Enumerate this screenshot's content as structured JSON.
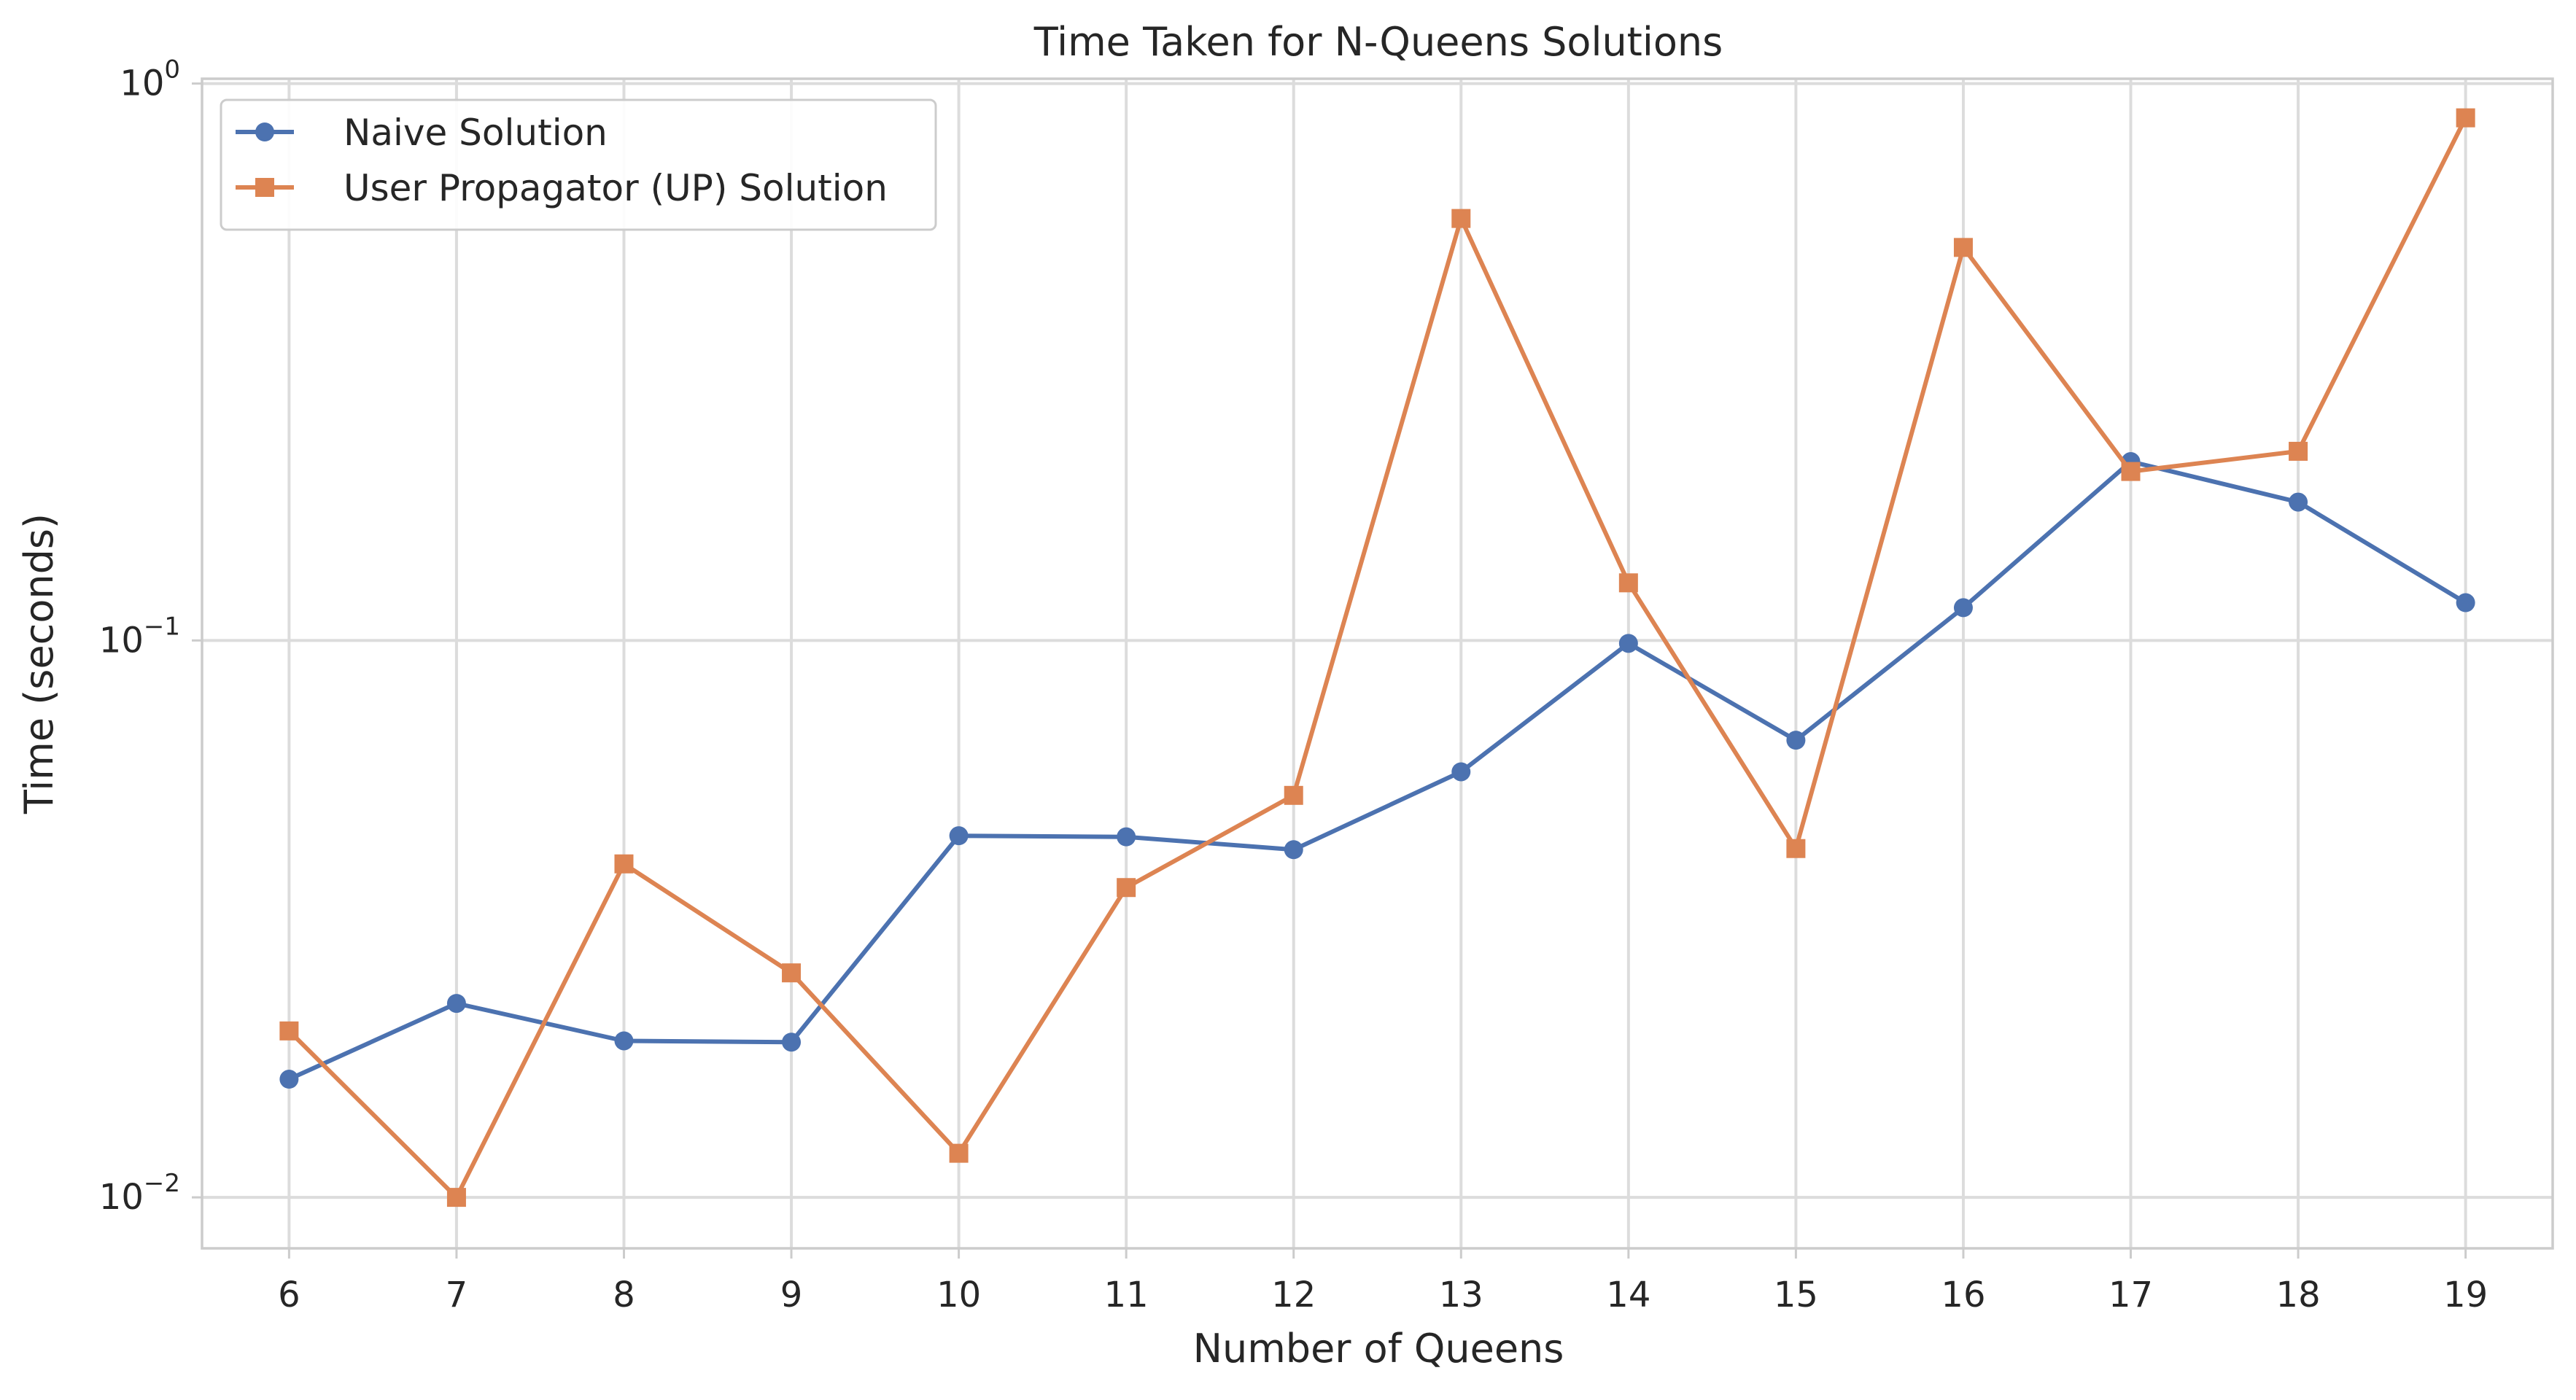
{
  "chart_data": {
    "type": "line",
    "title": "Time Taken for N-Queens Solutions",
    "xlabel": "Number of Queens",
    "ylabel": "Time (seconds)",
    "yscale": "log",
    "ylim": [
      0.0081,
      1.02
    ],
    "grid": true,
    "legend_position": "top-left",
    "x": [
      6,
      7,
      8,
      9,
      10,
      11,
      12,
      13,
      14,
      15,
      16,
      17,
      18,
      19
    ],
    "x_tick_labels": [
      "6",
      "7",
      "8",
      "9",
      "10",
      "11",
      "12",
      "13",
      "14",
      "15",
      "16",
      "17",
      "18",
      "19"
    ],
    "y_ticks": [
      {
        "value": 0.01,
        "base": "10",
        "exponent": "−2"
      },
      {
        "value": 0.1,
        "base": "10",
        "exponent": "−1"
      },
      {
        "value": 1,
        "base": "10",
        "exponent": "0"
      }
    ],
    "series": [
      {
        "name": "Naive Solution",
        "color": "#4c72b0",
        "marker": "circle",
        "values": [
          0.0163,
          0.0223,
          0.0191,
          0.019,
          0.0446,
          0.0444,
          0.0421,
          0.0581,
          0.0988,
          0.0662,
          0.1145,
          0.2095,
          0.1772,
          0.1169
        ]
      },
      {
        "name": "User Propagator (UP) Solution",
        "color": "#dd8452",
        "marker": "square",
        "values": [
          0.0199,
          0.01,
          0.0397,
          0.0253,
          0.012,
          0.036,
          0.0527,
          0.5724,
          0.1269,
          0.0423,
          0.5078,
          0.2011,
          0.2186,
          0.8678
        ]
      }
    ]
  }
}
